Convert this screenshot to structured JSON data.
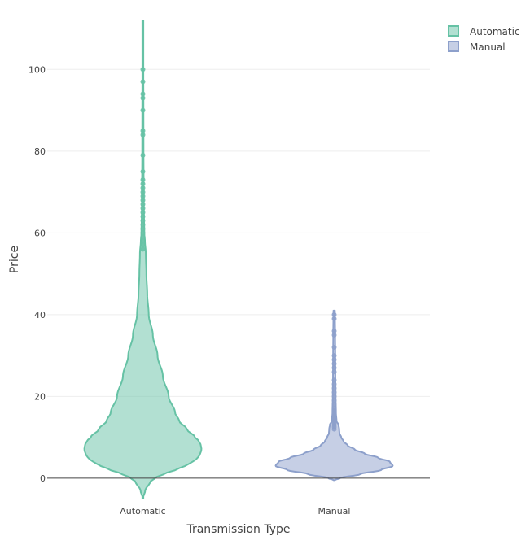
{
  "chart_data": {
    "type": "violin",
    "xlabel": "Transmission Type",
    "ylabel": "Price",
    "categories": [
      "Automatic",
      "Manual"
    ],
    "ylim": [
      -5,
      112
    ],
    "yticks": [
      0,
      20,
      40,
      60,
      80,
      100
    ],
    "grid": true,
    "legend_position": "top-right",
    "series": [
      {
        "name": "Automatic",
        "color": "#66c2a5",
        "range": [
          -5,
          112
        ],
        "density_profile": [
          [
            -5,
            0.0
          ],
          [
            -3,
            0.04
          ],
          [
            -1,
            0.12
          ],
          [
            0,
            0.2
          ],
          [
            1,
            0.35
          ],
          [
            2,
            0.55
          ],
          [
            3,
            0.72
          ],
          [
            4,
            0.85
          ],
          [
            5,
            0.94
          ],
          [
            6,
            0.98
          ],
          [
            7,
            1.0
          ],
          [
            8,
            0.99
          ],
          [
            9,
            0.96
          ],
          [
            10,
            0.89
          ],
          [
            12,
            0.75
          ],
          [
            14,
            0.62
          ],
          [
            16,
            0.55
          ],
          [
            20,
            0.44
          ],
          [
            25,
            0.34
          ],
          [
            30,
            0.25
          ],
          [
            35,
            0.17
          ],
          [
            40,
            0.1
          ],
          [
            45,
            0.075
          ],
          [
            50,
            0.06
          ],
          [
            55,
            0.05
          ],
          [
            58,
            0.035
          ],
          [
            60,
            0.025
          ],
          [
            65,
            0.018
          ],
          [
            70,
            0.014
          ],
          [
            80,
            0.011
          ],
          [
            90,
            0.01
          ],
          [
            100,
            0.008
          ],
          [
            112,
            0.006
          ]
        ],
        "outliers": [
          56,
          57,
          58,
          59,
          60,
          61,
          62,
          63,
          64,
          65,
          66,
          67,
          68,
          69,
          70,
          71,
          72,
          73,
          75,
          79,
          84,
          85,
          90,
          93,
          94,
          97,
          100
        ]
      },
      {
        "name": "Manual",
        "color": "#8da0cb",
        "range": [
          -0.5,
          41
        ],
        "density_profile": [
          [
            -0.5,
            0.0
          ],
          [
            0,
            0.1
          ],
          [
            1,
            0.45
          ],
          [
            2,
            0.8
          ],
          [
            3,
            1.0
          ],
          [
            4,
            0.95
          ],
          [
            5,
            0.75
          ],
          [
            6,
            0.52
          ],
          [
            7,
            0.35
          ],
          [
            8,
            0.23
          ],
          [
            9,
            0.16
          ],
          [
            10,
            0.12
          ],
          [
            11,
            0.09
          ],
          [
            12,
            0.085
          ],
          [
            13,
            0.075
          ],
          [
            14,
            0.04
          ],
          [
            16,
            0.03
          ],
          [
            20,
            0.024
          ],
          [
            25,
            0.02
          ],
          [
            30,
            0.018
          ],
          [
            35,
            0.016
          ],
          [
            41,
            0.012
          ]
        ],
        "outliers": [
          12,
          12.5,
          13,
          13.5,
          14,
          14.5,
          15,
          15.5,
          16,
          16.5,
          17,
          18,
          19,
          20,
          21,
          22,
          23,
          24,
          26,
          27,
          28,
          29,
          30,
          32,
          35,
          36,
          39,
          40
        ]
      }
    ]
  }
}
